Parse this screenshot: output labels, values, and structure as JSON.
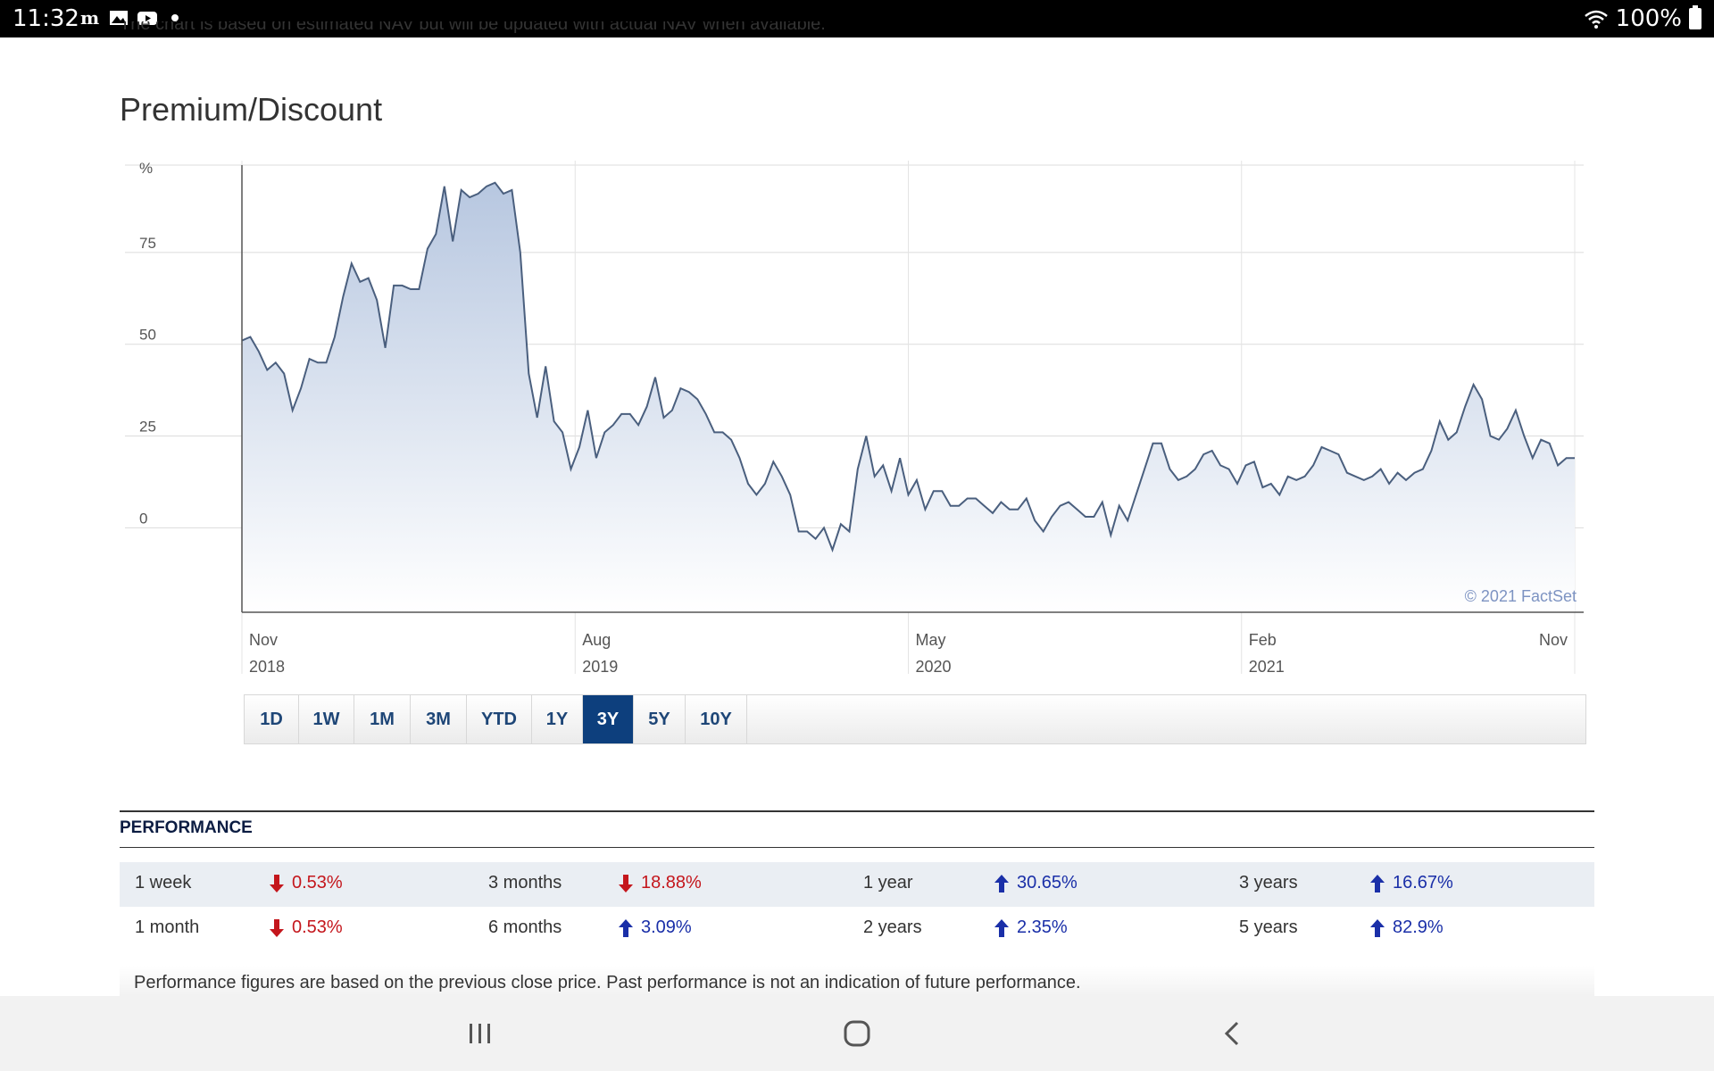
{
  "status_bar": {
    "time": "11:32",
    "battery": "100%",
    "left_icons": [
      "m-icon",
      "image-icon",
      "youtube-icon",
      "dot-icon"
    ],
    "right_icons": [
      "wifi-icon",
      "battery-icon"
    ]
  },
  "header": {
    "cut_text": "The chart is based on estimated NAV but will be updated with actual NAV when available.",
    "title": "Premium/Discount"
  },
  "chart_data": {
    "type": "area",
    "title": "Premium/Discount",
    "ylabel": "%",
    "y_ticks": [
      "75",
      "50",
      "25",
      "0"
    ],
    "y_tick_values": [
      75,
      50,
      25,
      0
    ],
    "ylim": [
      -23,
      100
    ],
    "x_ticks": [
      {
        "month": "Nov",
        "year": "2018",
        "t": 0
      },
      {
        "month": "Aug",
        "year": "2019",
        "t": 0.25
      },
      {
        "month": "May",
        "year": "2020",
        "t": 0.5
      },
      {
        "month": "Feb",
        "year": "2021",
        "t": 0.75
      },
      {
        "month": "Nov",
        "year": "",
        "t": 1.0
      }
    ],
    "grid": true,
    "fill_color": "#b7c7e0",
    "line_color": "#4a5f7e",
    "credit": "© 2021 FactSet",
    "series": [
      {
        "values": [
          51,
          52,
          48,
          43,
          45,
          42,
          32,
          38,
          46,
          45,
          45,
          52,
          63,
          72,
          67,
          68,
          62,
          49,
          66,
          66,
          65,
          65,
          76,
          80,
          93,
          78,
          92,
          90,
          91,
          93,
          94,
          91,
          92,
          75,
          42,
          30,
          44,
          29,
          26,
          16,
          22,
          32,
          19,
          26,
          28,
          31,
          31,
          28,
          33,
          41,
          30,
          32,
          38,
          37,
          35,
          31,
          26,
          26,
          24,
          19,
          12,
          9,
          12,
          18,
          14,
          9,
          -1,
          -1,
          -3,
          0,
          -6,
          1,
          -1,
          16,
          25,
          14,
          17,
          10,
          19,
          9,
          13,
          5,
          10,
          10,
          6,
          6,
          8,
          8,
          6,
          4,
          7,
          5,
          5,
          8,
          2,
          -1,
          3,
          6,
          7,
          5,
          3,
          3,
          7,
          -2,
          6,
          2,
          9,
          16,
          23,
          23,
          16,
          13,
          14,
          16,
          20,
          21,
          17,
          16,
          12,
          17,
          18,
          11,
          12,
          9,
          14,
          13,
          14,
          17,
          22,
          21,
          20,
          15,
          14,
          13,
          14,
          16,
          12,
          15,
          13,
          15,
          16,
          21,
          29,
          24,
          26,
          33,
          39,
          35,
          25,
          24,
          27,
          32,
          25,
          19,
          24,
          23,
          17,
          19,
          19
        ]
      }
    ]
  },
  "range_buttons": [
    {
      "label": "1D",
      "active": false
    },
    {
      "label": "1W",
      "active": false
    },
    {
      "label": "1M",
      "active": false
    },
    {
      "label": "3M",
      "active": false
    },
    {
      "label": "YTD",
      "active": false
    },
    {
      "label": "1Y",
      "active": false
    },
    {
      "label": "3Y",
      "active": true
    },
    {
      "label": "5Y",
      "active": false
    },
    {
      "label": "10Y",
      "active": false
    }
  ],
  "performance": {
    "title": "PERFORMANCE",
    "rows": [
      [
        {
          "label": "1 week",
          "value": "0.53%",
          "dir": "down"
        },
        {
          "label": "3 months",
          "value": "18.88%",
          "dir": "down"
        },
        {
          "label": "1 year",
          "value": "30.65%",
          "dir": "up"
        },
        {
          "label": "3 years",
          "value": "16.67%",
          "dir": "up"
        }
      ],
      [
        {
          "label": "1 month",
          "value": "0.53%",
          "dir": "down"
        },
        {
          "label": "6 months",
          "value": "3.09%",
          "dir": "up"
        },
        {
          "label": "2 years",
          "value": "2.35%",
          "dir": "up"
        },
        {
          "label": "5 years",
          "value": "82.9%",
          "dir": "up"
        }
      ]
    ],
    "footnote": "Performance figures are based on the previous close price. Past performance is not an indication of future performance."
  },
  "nav_bar": {
    "buttons": [
      "recent-apps-icon",
      "home-icon",
      "back-icon"
    ]
  }
}
